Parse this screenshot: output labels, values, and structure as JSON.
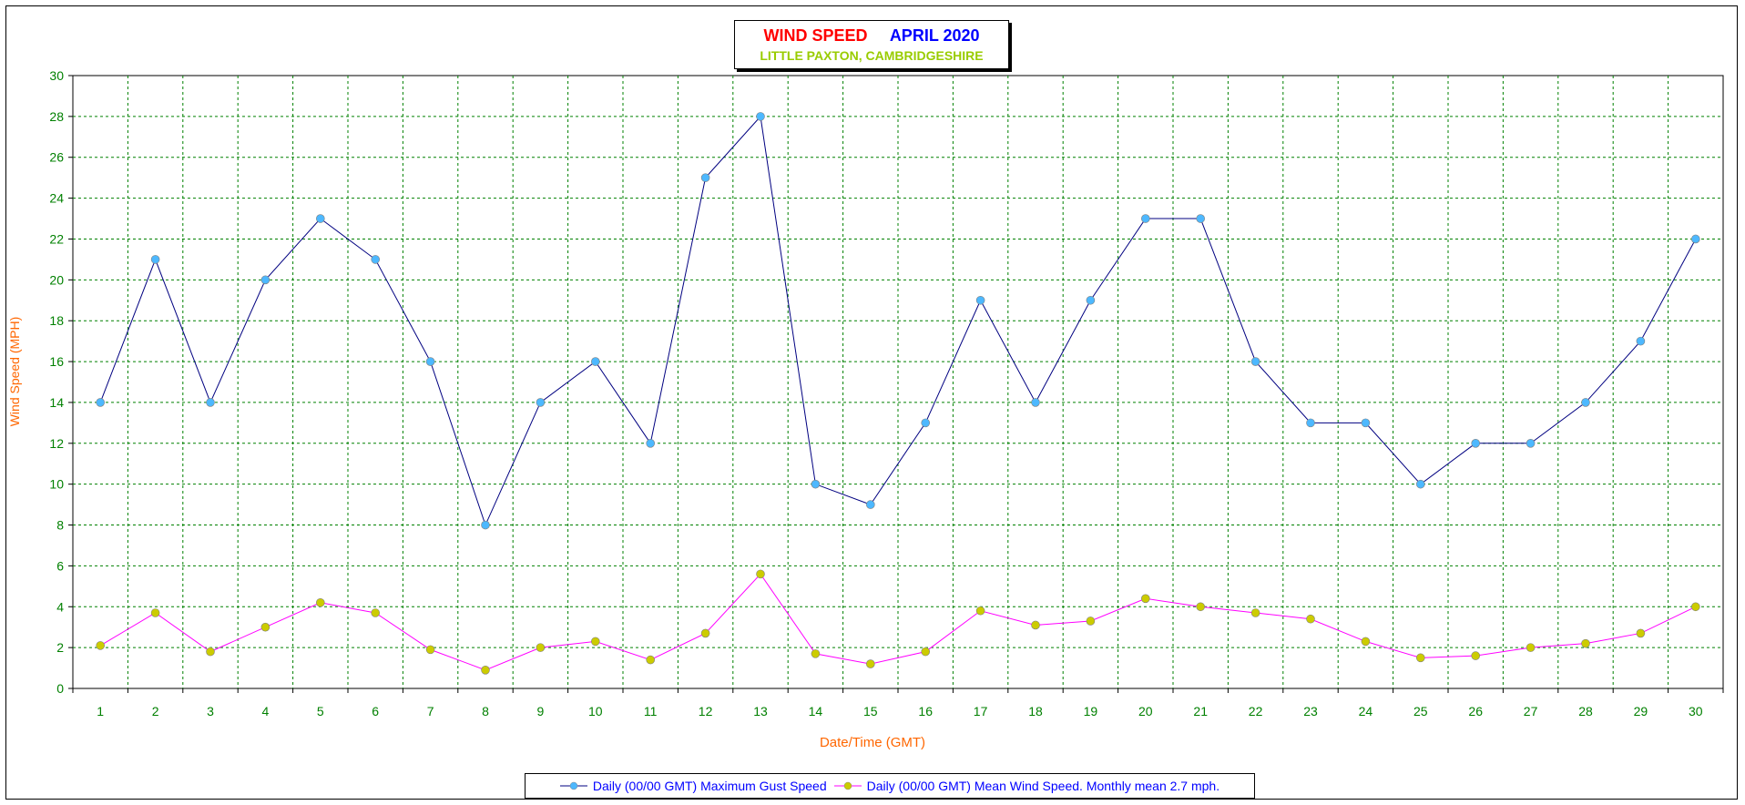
{
  "colors": {
    "title_main": "#ff0000",
    "title_date": "#0000ff",
    "subtitle": "#99cc00",
    "axis_label": "#ff6600",
    "tick_label": "#008000",
    "grid": "#008000",
    "gust_line": "#000080",
    "gust_marker": "#4db8ff",
    "mean_line": "#ff00ff",
    "mean_marker": "#cccc00",
    "legend_text": "#0000ff"
  },
  "chart_data": {
    "type": "line",
    "title": "WIND SPEED",
    "title_date": "APRIL 2020",
    "subtitle": "LITTLE PAXTON, CAMBRIDGESHIRE",
    "xlabel": "Date/Time (GMT)",
    "ylabel": "Wind Speed (MPH)",
    "ylim": [
      0,
      30
    ],
    "yticks": [
      0,
      2,
      4,
      6,
      8,
      10,
      12,
      14,
      16,
      18,
      20,
      22,
      24,
      26,
      28,
      30
    ],
    "grid": true,
    "legend_position": "bottom",
    "categories": [
      "1",
      "2",
      "3",
      "4",
      "5",
      "6",
      "7",
      "8",
      "9",
      "10",
      "11",
      "12",
      "13",
      "14",
      "15",
      "16",
      "17",
      "18",
      "19",
      "20",
      "21",
      "22",
      "23",
      "24",
      "25",
      "26",
      "27",
      "28",
      "29",
      "30"
    ],
    "series": [
      {
        "name": "Daily (00/00 GMT) Maximum Gust Speed",
        "values": [
          14,
          21,
          14,
          20,
          23,
          21,
          16,
          8,
          14,
          16,
          12,
          25,
          28,
          10,
          9,
          13,
          19,
          14,
          19,
          23,
          23,
          16,
          13,
          13,
          10,
          12,
          12,
          14,
          17,
          22
        ]
      },
      {
        "name": "Daily (00/00 GMT) Mean Wind Speed. Monthly mean 2.7 mph.",
        "values": [
          2.1,
          3.7,
          1.8,
          3.0,
          4.2,
          3.7,
          1.9,
          0.9,
          2.0,
          2.3,
          1.4,
          2.7,
          5.6,
          1.7,
          1.2,
          1.8,
          3.8,
          3.1,
          3.3,
          4.4,
          4.0,
          3.7,
          3.4,
          2.3,
          1.5,
          1.6,
          2.0,
          2.2,
          2.7,
          4.0
        ]
      }
    ]
  }
}
